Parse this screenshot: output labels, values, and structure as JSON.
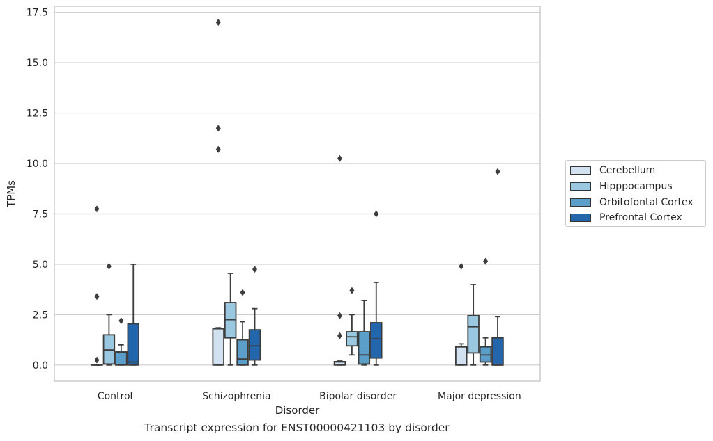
{
  "chart_data": {
    "type": "box",
    "xlabel": "Disorder",
    "ylabel": "TPMs",
    "ylim": [
      -0.8,
      17.8
    ],
    "yticks": [
      0.0,
      2.5,
      5.0,
      7.5,
      10.0,
      12.5,
      15.0,
      17.5
    ],
    "ytick_labels": [
      "0.0",
      "2.5",
      "5.0",
      "7.5",
      "10.0",
      "12.5",
      "15.0",
      "17.5"
    ],
    "grid": true,
    "legend_position": "right",
    "categories": [
      "Control",
      "Schizophrenia",
      "Bipolar disorder",
      "Major depression"
    ],
    "series": [
      {
        "name": "Cerebellum",
        "color": "#d1e1ef",
        "boxes": [
          {
            "category": "Control",
            "whislo": 0.0,
            "q1": 0.0,
            "med": 0.0,
            "q3": 0.0,
            "whishi": 0.0,
            "fliers": [
              7.75,
              3.4,
              0.25
            ]
          },
          {
            "category": "Schizophrenia",
            "whislo": 0.0,
            "q1": 0.0,
            "med": 1.8,
            "q3": 1.8,
            "whishi": 1.85,
            "fliers": [
              17.0,
              11.75,
              10.7
            ]
          },
          {
            "category": "Bipolar disorder",
            "whislo": 0.0,
            "q1": 0.0,
            "med": 0.15,
            "q3": 0.17,
            "whishi": 0.2,
            "fliers": [
              10.25,
              2.45,
              1.45
            ]
          },
          {
            "category": "Major depression",
            "whislo": 0.0,
            "q1": 0.0,
            "med": 0.9,
            "q3": 0.9,
            "whishi": 1.05,
            "fliers": [
              4.9
            ]
          }
        ]
      },
      {
        "name": "Hipppocampus",
        "color": "#9ac8e0",
        "boxes": [
          {
            "category": "Control",
            "whislo": 0.0,
            "q1": 0.05,
            "med": 0.75,
            "q3": 1.5,
            "whishi": 2.5,
            "fliers": [
              4.9
            ]
          },
          {
            "category": "Schizophrenia",
            "whislo": 0.0,
            "q1": 1.35,
            "med": 2.25,
            "q3": 3.1,
            "whishi": 4.55,
            "fliers": []
          },
          {
            "category": "Bipolar disorder",
            "whislo": 0.5,
            "q1": 0.95,
            "med": 1.4,
            "q3": 1.65,
            "whishi": 2.5,
            "fliers": [
              3.7
            ]
          },
          {
            "category": "Major depression",
            "whislo": 0.0,
            "q1": 0.6,
            "med": 1.9,
            "q3": 2.45,
            "whishi": 4.0,
            "fliers": []
          }
        ]
      },
      {
        "name": "Orbitofontal Cortex",
        "color": "#5a9ec9",
        "boxes": [
          {
            "category": "Control",
            "whislo": 0.0,
            "q1": 0.0,
            "med": 0.65,
            "q3": 0.65,
            "whishi": 1.0,
            "fliers": [
              2.2
            ]
          },
          {
            "category": "Schizophrenia",
            "whislo": 0.0,
            "q1": 0.0,
            "med": 0.3,
            "q3": 1.25,
            "whishi": 2.15,
            "fliers": [
              3.6
            ]
          },
          {
            "category": "Bipolar disorder",
            "whislo": 0.0,
            "q1": 0.05,
            "med": 0.5,
            "q3": 1.65,
            "whishi": 3.2,
            "fliers": []
          },
          {
            "category": "Major depression",
            "whislo": 0.0,
            "q1": 0.15,
            "med": 0.5,
            "q3": 0.9,
            "whishi": 1.35,
            "fliers": [
              5.15
            ]
          }
        ]
      },
      {
        "name": "Prefrontal Cortex",
        "color": "#2466ab",
        "boxes": [
          {
            "category": "Control",
            "whislo": 0.0,
            "q1": 0.0,
            "med": 0.15,
            "q3": 2.05,
            "whishi": 5.0,
            "fliers": []
          },
          {
            "category": "Schizophrenia",
            "whislo": 0.0,
            "q1": 0.25,
            "med": 0.95,
            "q3": 1.75,
            "whishi": 2.8,
            "fliers": [
              4.75
            ]
          },
          {
            "category": "Bipolar disorder",
            "whislo": 0.0,
            "q1": 0.35,
            "med": 1.3,
            "q3": 2.1,
            "whishi": 4.1,
            "fliers": [
              7.5
            ]
          },
          {
            "category": "Major depression",
            "whislo": 0.0,
            "q1": 0.0,
            "med": 0.0,
            "q3": 1.35,
            "whishi": 2.4,
            "fliers": [
              9.6
            ]
          }
        ]
      }
    ],
    "caption": "Transcript expression for ENST00000421103 by disorder"
  }
}
